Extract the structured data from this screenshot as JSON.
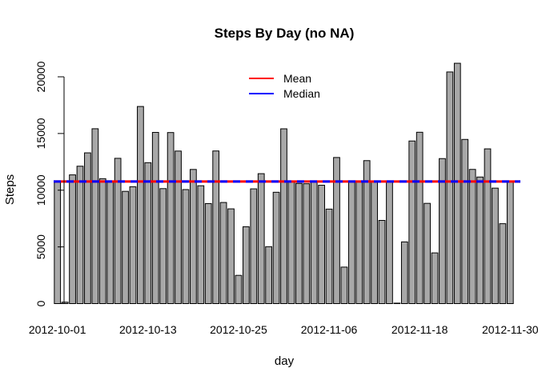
{
  "chart_data": {
    "type": "bar",
    "title": "Steps By Day (no NA)",
    "xlabel": "day",
    "ylabel": "Steps",
    "ylim": [
      0,
      22000
    ],
    "yticks": [
      0,
      5000,
      10000,
      15000,
      20000
    ],
    "x_tick_labels": [
      {
        "label": "2012-10-01",
        "index": 0
      },
      {
        "label": "2012-10-13",
        "index": 12
      },
      {
        "label": "2012-10-25",
        "index": 24
      },
      {
        "label": "2012-11-06",
        "index": 36
      },
      {
        "label": "2012-11-18",
        "index": 48
      },
      {
        "label": "2012-11-30",
        "index": 60
      }
    ],
    "values": [
      10766,
      126,
      11352,
      12116,
      13294,
      15420,
      11015,
      10766,
      12811,
      9900,
      10304,
      17382,
      12426,
      15098,
      10139,
      15084,
      13452,
      10056,
      11829,
      10395,
      8821,
      13460,
      8918,
      8355,
      2492,
      6778,
      10119,
      11458,
      5018,
      9819,
      15414,
      10766,
      10600,
      10571,
      10766,
      10439,
      8334,
      12883,
      3219,
      10766,
      10766,
      12608,
      10765,
      7336,
      10766,
      41,
      5441,
      14339,
      15110,
      8841,
      4472,
      12787,
      20427,
      21194,
      14478,
      11834,
      11162,
      13646,
      10183,
      7047,
      10766
    ],
    "reference_lines": [
      {
        "name": "Mean",
        "value": 10766.19,
        "color": "#ff0000"
      },
      {
        "name": "Median",
        "value": 10766.19,
        "color": "#0000ff"
      }
    ],
    "legend_position": "top-center"
  }
}
